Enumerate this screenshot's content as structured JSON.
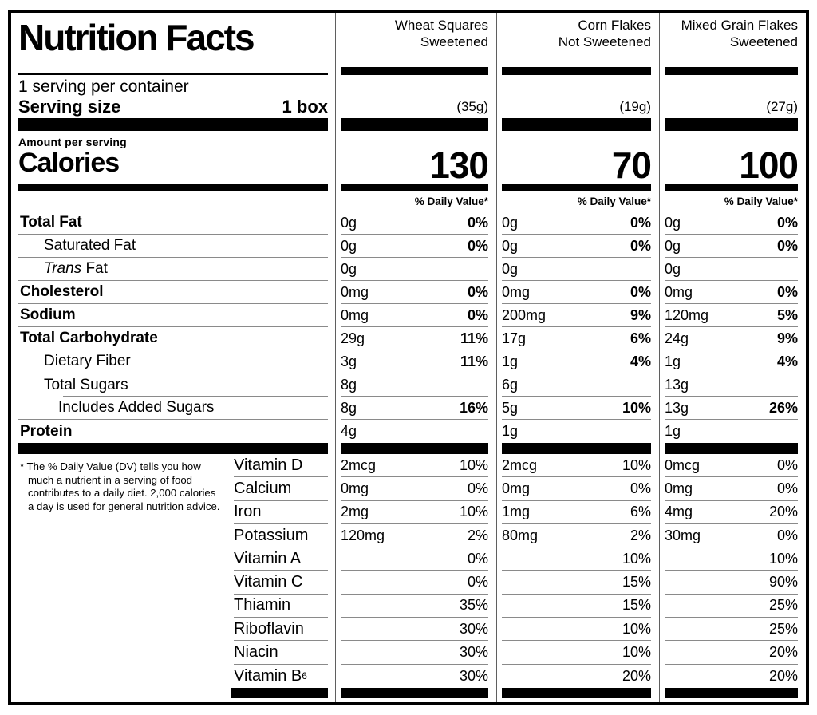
{
  "colors": {
    "ink": "#000000",
    "hairline": "#8a8a8a",
    "background": "#ffffff"
  },
  "label": {
    "title": "Nutrition Facts",
    "servings_per_container": "1 serving per container",
    "serving_size_label": "Serving size",
    "serving_size_value": "1 box",
    "amount_per_serving_label": "Amount per serving",
    "calories_label": "Calories",
    "daily_value_header": "% Daily Value*",
    "footnote": "* The % Daily Value (DV) tells you how much a nutrient in a serving of food contributes to a daily diet. 2,000 calories a day is used for general nutrition advice."
  },
  "products": [
    {
      "name_line1": "Wheat Squares",
      "name_line2": "Sweetened",
      "serving_weight": "(35g)",
      "calories": "130"
    },
    {
      "name_line1": "Corn Flakes",
      "name_line2": "Not Sweetened",
      "serving_weight": "(19g)",
      "calories": "70"
    },
    {
      "name_line1": "Mixed Grain Flakes",
      "name_line2": "Sweetened",
      "serving_weight": "(27g)",
      "calories": "100"
    }
  ],
  "nutrients": [
    {
      "label": "Total Fat",
      "bold": true,
      "indent": 0,
      "values": [
        {
          "amount": "0g",
          "dv": "0%"
        },
        {
          "amount": "0g",
          "dv": "0%"
        },
        {
          "amount": "0g",
          "dv": "0%"
        }
      ]
    },
    {
      "label": "Saturated Fat",
      "bold": false,
      "indent": 1,
      "values": [
        {
          "amount": "0g",
          "dv": "0%"
        },
        {
          "amount": "0g",
          "dv": "0%"
        },
        {
          "amount": "0g",
          "dv": "0%"
        }
      ]
    },
    {
      "label": "Fat",
      "label_italic": "Trans",
      "bold": false,
      "indent": 1,
      "values": [
        {
          "amount": "0g",
          "dv": ""
        },
        {
          "amount": "0g",
          "dv": ""
        },
        {
          "amount": "0g",
          "dv": ""
        }
      ]
    },
    {
      "label": "Cholesterol",
      "bold": true,
      "indent": 0,
      "values": [
        {
          "amount": "0mg",
          "dv": "0%"
        },
        {
          "amount": "0mg",
          "dv": "0%"
        },
        {
          "amount": "0mg",
          "dv": "0%"
        }
      ]
    },
    {
      "label": "Sodium",
      "bold": true,
      "indent": 0,
      "values": [
        {
          "amount": "0mg",
          "dv": "0%"
        },
        {
          "amount": "200mg",
          "dv": "9%"
        },
        {
          "amount": "120mg",
          "dv": "5%"
        }
      ]
    },
    {
      "label": "Total Carbohydrate",
      "bold": true,
      "indent": 0,
      "values": [
        {
          "amount": "29g",
          "dv": "11%"
        },
        {
          "amount": "17g",
          "dv": "6%"
        },
        {
          "amount": "24g",
          "dv": "9%"
        }
      ]
    },
    {
      "label": "Dietary Fiber",
      "bold": false,
      "indent": 1,
      "values": [
        {
          "amount": "3g",
          "dv": "11%"
        },
        {
          "amount": "1g",
          "dv": "4%"
        },
        {
          "amount": "1g",
          "dv": "4%"
        }
      ]
    },
    {
      "label": "Total Sugars",
      "bold": false,
      "indent": 1,
      "inset_rule_below": true,
      "values": [
        {
          "amount": "8g",
          "dv": ""
        },
        {
          "amount": "6g",
          "dv": ""
        },
        {
          "amount": "13g",
          "dv": ""
        }
      ]
    },
    {
      "label": "Includes Added Sugars",
      "bold": false,
      "indent": 2,
      "values": [
        {
          "amount": "8g",
          "dv": "16%"
        },
        {
          "amount": "5g",
          "dv": "10%"
        },
        {
          "amount": "13g",
          "dv": "26%"
        }
      ]
    },
    {
      "label": "Protein",
      "bold": true,
      "indent": 0,
      "values": [
        {
          "amount": "4g",
          "dv": ""
        },
        {
          "amount": "1g",
          "dv": ""
        },
        {
          "amount": "1g",
          "dv": ""
        }
      ]
    }
  ],
  "vitamins": [
    {
      "label": "Vitamin D",
      "values": [
        {
          "amount": "2mcg",
          "dv": "10%"
        },
        {
          "amount": "2mcg",
          "dv": "10%"
        },
        {
          "amount": "0mcg",
          "dv": "0%"
        }
      ]
    },
    {
      "label": "Calcium",
      "values": [
        {
          "amount": "0mg",
          "dv": "0%"
        },
        {
          "amount": "0mg",
          "dv": "0%"
        },
        {
          "amount": "0mg",
          "dv": "0%"
        }
      ]
    },
    {
      "label": "Iron",
      "values": [
        {
          "amount": "2mg",
          "dv": "10%"
        },
        {
          "amount": "1mg",
          "dv": "6%"
        },
        {
          "amount": "4mg",
          "dv": "20%"
        }
      ]
    },
    {
      "label": "Potassium",
      "values": [
        {
          "amount": "120mg",
          "dv": "2%"
        },
        {
          "amount": "80mg",
          "dv": "2%"
        },
        {
          "amount": "30mg",
          "dv": "0%"
        }
      ]
    },
    {
      "label": "Vitamin A",
      "values": [
        {
          "amount": "",
          "dv": "0%"
        },
        {
          "amount": "",
          "dv": "10%"
        },
        {
          "amount": "",
          "dv": "10%"
        }
      ]
    },
    {
      "label": "Vitamin C",
      "values": [
        {
          "amount": "",
          "dv": "0%"
        },
        {
          "amount": "",
          "dv": "15%"
        },
        {
          "amount": "",
          "dv": "90%"
        }
      ]
    },
    {
      "label": "Thiamin",
      "values": [
        {
          "amount": "",
          "dv": "35%"
        },
        {
          "amount": "",
          "dv": "15%"
        },
        {
          "amount": "",
          "dv": "25%"
        }
      ]
    },
    {
      "label": "Riboflavin",
      "values": [
        {
          "amount": "",
          "dv": "30%"
        },
        {
          "amount": "",
          "dv": "10%"
        },
        {
          "amount": "",
          "dv": "25%"
        }
      ]
    },
    {
      "label": "Niacin",
      "values": [
        {
          "amount": "",
          "dv": "30%"
        },
        {
          "amount": "",
          "dv": "10%"
        },
        {
          "amount": "",
          "dv": "20%"
        }
      ]
    },
    {
      "label": "Vitamin B",
      "label_sub": "6",
      "values": [
        {
          "amount": "",
          "dv": "30%"
        },
        {
          "amount": "",
          "dv": "20%"
        },
        {
          "amount": "",
          "dv": "20%"
        }
      ]
    }
  ]
}
